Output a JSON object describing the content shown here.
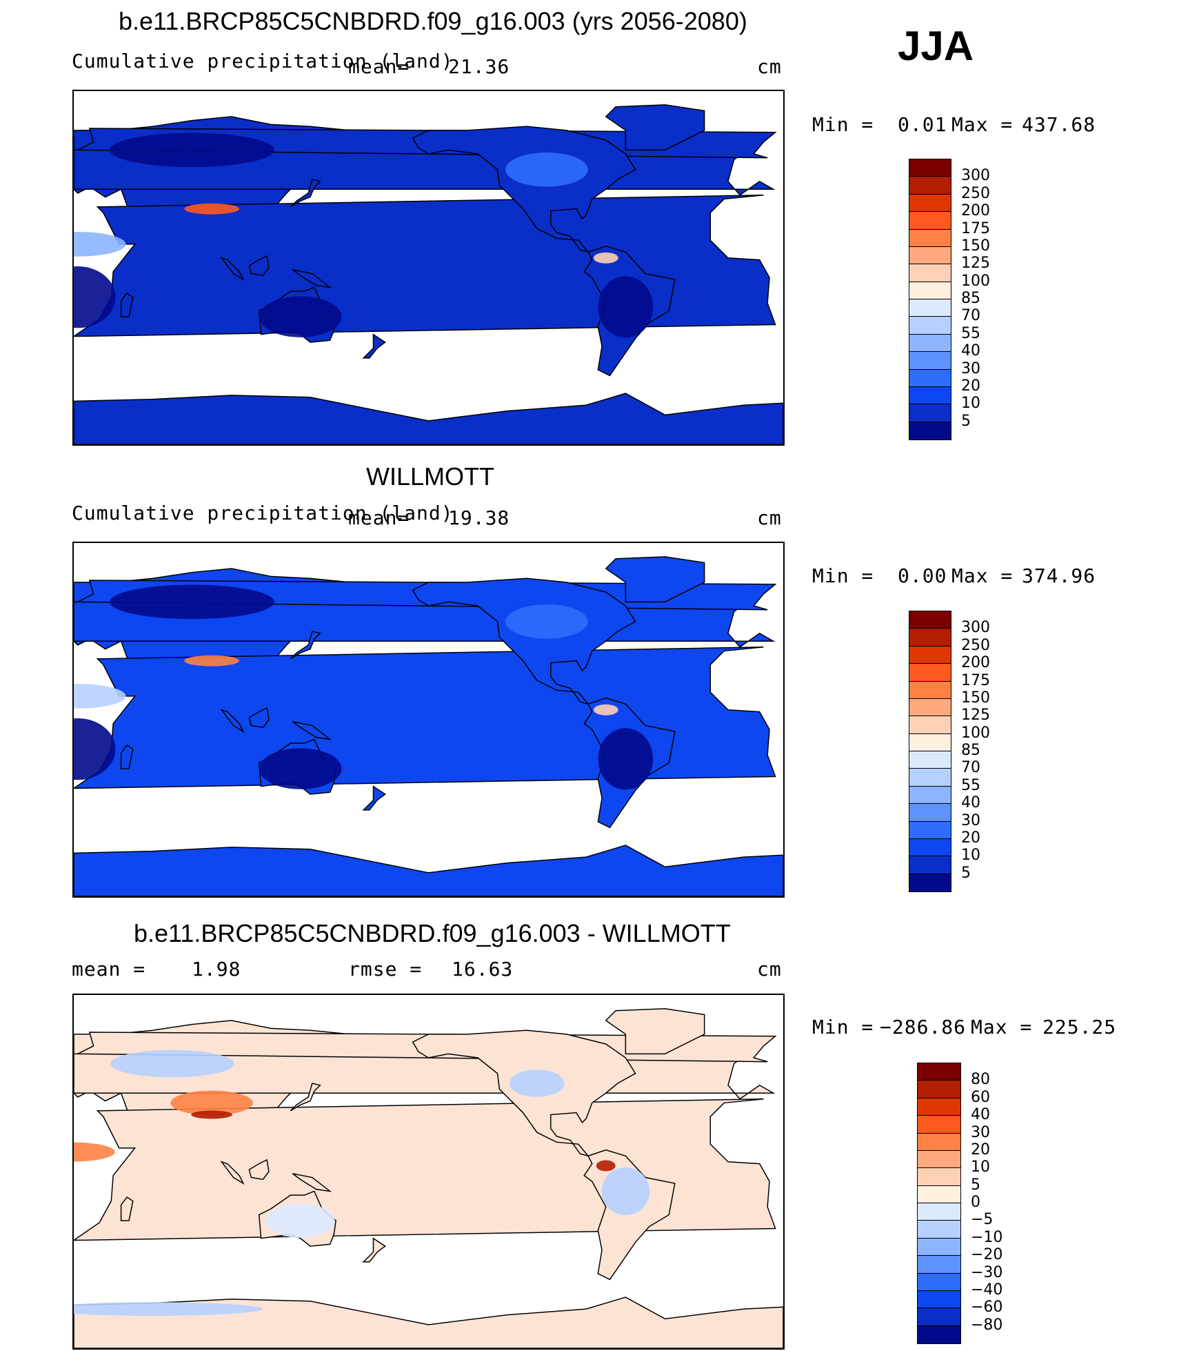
{
  "season": "JJA",
  "panels": [
    {
      "title": "b.e11.BRCP85C5CNBDRD.f09_g16.003 (yrs 2056-2080)",
      "subtitle": "Cumulative precipitation (land)",
      "mean_label": "mean=",
      "mean_value": "21.36",
      "units": "cm",
      "min_label": "Min =",
      "min_value": "0.01",
      "max_label": "Max =",
      "max_value": "437.68",
      "colorbar": {
        "colors": [
          "#7a0000",
          "#b31d00",
          "#e03600",
          "#ff5a1e",
          "#ff8244",
          "#ffa87e",
          "#ffd0b4",
          "#fff0e0",
          "#dbe9ff",
          "#b6d0ff",
          "#8cb4ff",
          "#5e92ff",
          "#2e6dfc",
          "#0e46f0",
          "#0a2ec8",
          "#020a8c"
        ],
        "ticks": [
          "300",
          "250",
          "200",
          "175",
          "150",
          "125",
          "100",
          "85",
          "70",
          "55",
          "40",
          "30",
          "20",
          "10",
          "5"
        ]
      }
    },
    {
      "title": "WILLMOTT",
      "subtitle": "Cumulative precipitation (land)",
      "mean_label": "mean=",
      "mean_value": "19.38",
      "units": "cm",
      "min_label": "Min =",
      "min_value": "0.00",
      "max_label": "Max =",
      "max_value": "374.96",
      "colorbar": {
        "colors": [
          "#7a0000",
          "#b31d00",
          "#e03600",
          "#ff5a1e",
          "#ff8244",
          "#ffa87e",
          "#ffd0b4",
          "#fff0e0",
          "#dbe9ff",
          "#b6d0ff",
          "#8cb4ff",
          "#5e92ff",
          "#2e6dfc",
          "#0e46f0",
          "#0a2ec8",
          "#020a8c"
        ],
        "ticks": [
          "300",
          "250",
          "200",
          "175",
          "150",
          "125",
          "100",
          "85",
          "70",
          "55",
          "40",
          "30",
          "20",
          "10",
          "5"
        ]
      }
    },
    {
      "title": "b.e11.BRCP85C5CNBDRD.f09_g16.003 - WILLMOTT",
      "mean_label": "mean =",
      "mean_value": "1.98",
      "rmse_label": "rmse =",
      "rmse_value": "16.63",
      "units": "cm",
      "min_label": "Min =",
      "min_value": "−286.86",
      "max_label": "Max =",
      "max_value": "225.25",
      "colorbar": {
        "colors": [
          "#7a0000",
          "#b31d00",
          "#e03600",
          "#ff5a1e",
          "#ff8244",
          "#ffa87e",
          "#ffd0b4",
          "#fff0e0",
          "#dbe9ff",
          "#b6d0ff",
          "#8cb4ff",
          "#5e92ff",
          "#2e6dfc",
          "#0e46f0",
          "#0a2ec8",
          "#020a8c"
        ],
        "ticks": [
          "80",
          "60",
          "40",
          "30",
          "20",
          "10",
          "5",
          "0",
          "−5",
          "−10",
          "−20",
          "−30",
          "−40",
          "−60",
          "−80"
        ]
      }
    }
  ]
}
